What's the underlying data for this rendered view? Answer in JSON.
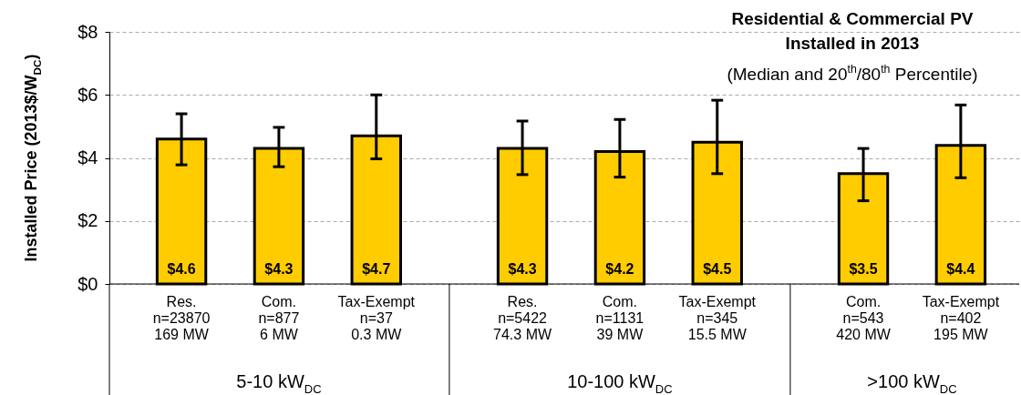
{
  "chart_data": {
    "type": "bar",
    "title": "Residential & Commercial PV\nInstalled in 2013",
    "subtitle": "(Median and 20$^{th}$/80$^{th}$ Percentile)",
    "ylabel": "Installed Price (2013$/W$_{DC}$)",
    "categories": [
      "Res.\nn=23870\n169 MW",
      "Com.\nn=877\n6 MW",
      "Tax-Exempt\nn=37\n0.3 MW",
      "Res.\nn=5422\n74.3 MW",
      "Com.\nn=1131\n39 MW",
      "Tax-Exempt\nn=345\n15.5 MW",
      "Com.\nn=543\n420 MW",
      "Tax-Exempt\nn=402\n195 MW"
    ],
    "values": [
      4.6,
      4.3,
      4.7,
      4.3,
      4.2,
      4.5,
      3.5,
      4.4
    ],
    "value_labels": [
      "$4.6",
      "$4.3",
      "$4.7",
      "$4.3",
      "$4.2",
      "$4.5",
      "$3.5",
      "$4.4"
    ],
    "errors": [
      [
        3.78,
        5.4
      ],
      [
        3.72,
        4.97
      ],
      [
        3.97,
        6.0
      ],
      [
        3.47,
        5.17
      ],
      [
        3.39,
        5.22
      ],
      [
        3.5,
        5.83
      ],
      [
        2.64,
        4.3
      ],
      [
        3.37,
        5.68
      ]
    ],
    "color": "#ffcc00",
    "ylim": [
      0,
      8
    ],
    "yticks": [
      {
        "value": 0,
        "label": "$0"
      },
      {
        "value": 2,
        "label": "$2"
      },
      {
        "value": 4,
        "label": "$4"
      },
      {
        "value": 6,
        "label": "$6"
      },
      {
        "value": 8,
        "label": "$8"
      }
    ],
    "grid": "y",
    "annotations": [
      "5-10 kW$_{DC}$",
      "10-100 kW$_{DC}$",
      ">100 kW$_{DC}$"
    ]
  }
}
